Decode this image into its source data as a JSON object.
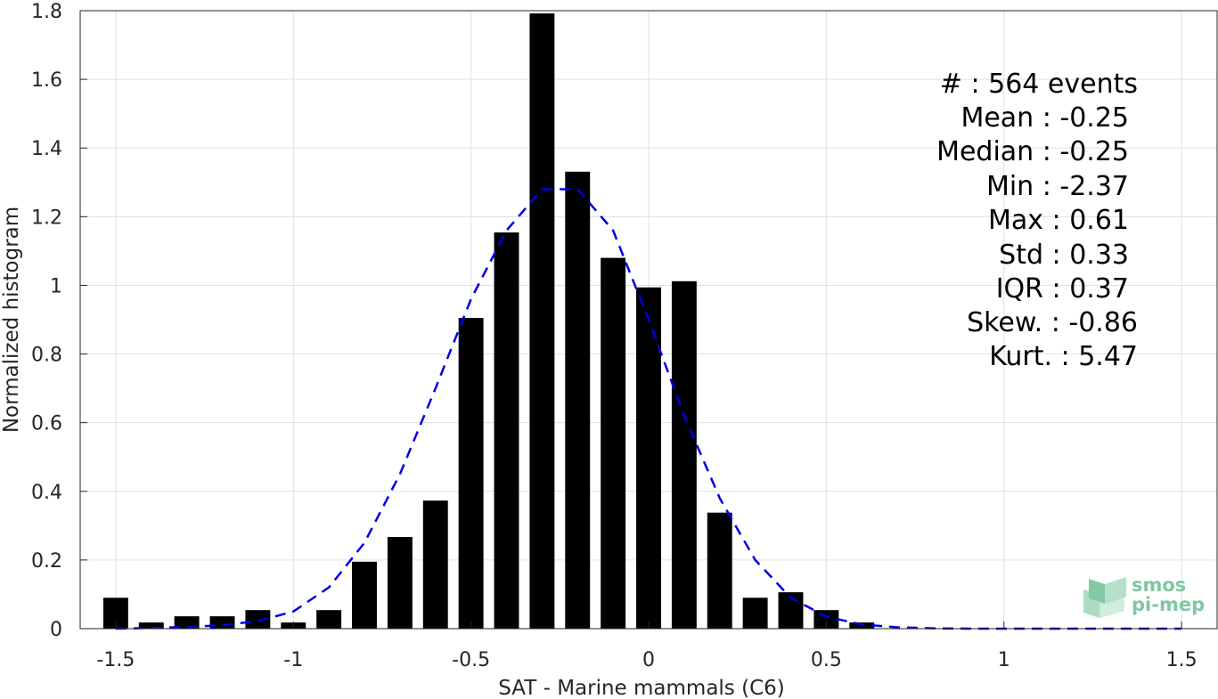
{
  "chart_data": {
    "type": "bar",
    "xlabel": "SAT - Marine mammals (C6)",
    "ylabel": "Normalized histogram",
    "xlim": [
      -1.6,
      1.6
    ],
    "ylim": [
      0,
      1.8
    ],
    "x_ticks": [
      -1.5,
      -1,
      -0.5,
      0,
      0.5,
      1,
      1.5
    ],
    "x_tick_labels": [
      "-1.5",
      "-1",
      "-0.5",
      "0",
      "0.5",
      "1",
      "1.5"
    ],
    "y_ticks": [
      0,
      0.2,
      0.4,
      0.6,
      0.8,
      1,
      1.2,
      1.4,
      1.6,
      1.8
    ],
    "y_tick_labels": [
      "0",
      "0.2",
      "0.4",
      "0.6",
      "0.8",
      "1",
      "1.2",
      "1.4",
      "1.6",
      "1.8"
    ],
    "grid": true,
    "bar_width": 0.07,
    "bars": [
      {
        "x": -1.5,
        "value": 0.09
      },
      {
        "x": -1.4,
        "value": 0.018
      },
      {
        "x": -1.3,
        "value": 0.036
      },
      {
        "x": -1.2,
        "value": 0.036
      },
      {
        "x": -1.1,
        "value": 0.054
      },
      {
        "x": -1.0,
        "value": 0.018
      },
      {
        "x": -0.9,
        "value": 0.054
      },
      {
        "x": -0.8,
        "value": 0.195
      },
      {
        "x": -0.7,
        "value": 0.267
      },
      {
        "x": -0.6,
        "value": 0.373
      },
      {
        "x": -0.5,
        "value": 0.905
      },
      {
        "x": -0.4,
        "value": 1.154
      },
      {
        "x": -0.3,
        "value": 1.792
      },
      {
        "x": -0.2,
        "value": 1.331
      },
      {
        "x": -0.1,
        "value": 1.08
      },
      {
        "x": 0.0,
        "value": 0.994
      },
      {
        "x": 0.1,
        "value": 1.012
      },
      {
        "x": 0.2,
        "value": 0.338
      },
      {
        "x": 0.3,
        "value": 0.09
      },
      {
        "x": 0.4,
        "value": 0.106
      },
      {
        "x": 0.5,
        "value": 0.054
      },
      {
        "x": 0.6,
        "value": 0.018
      }
    ],
    "bar_color": "#000000",
    "fit_curve": {
      "style": "dashed",
      "color": "#0000e6",
      "x": [
        -1.5,
        -1.4,
        -1.3,
        -1.2,
        -1.1,
        -1.0,
        -0.9,
        -0.8,
        -0.7,
        -0.6,
        -0.5,
        -0.4,
        -0.3,
        -0.2,
        -0.1,
        0.0,
        0.1,
        0.2,
        0.3,
        0.4,
        0.5,
        0.6,
        0.7,
        0.8,
        0.9,
        1.0,
        1.1,
        1.2,
        1.3,
        1.4,
        1.5
      ],
      "y": [
        0.0,
        0.002,
        0.005,
        0.01,
        0.022,
        0.05,
        0.12,
        0.25,
        0.45,
        0.7,
        0.96,
        1.16,
        1.28,
        1.28,
        1.16,
        0.9,
        0.62,
        0.38,
        0.2,
        0.09,
        0.035,
        0.012,
        0.004,
        0.001,
        0.0,
        0.0,
        0.0,
        0.0,
        0.0,
        0.0,
        0.0
      ]
    },
    "stats": [
      "#  : 564 events",
      "Mean : -0.25",
      "Median : -0.25",
      "Min : -2.37",
      "Max : 0.61",
      "Std : 0.33",
      "IQR : 0.37",
      "Skew. : -0.86",
      "Kurt. : 5.47"
    ]
  },
  "logo": {
    "line1": "smos",
    "line2": "pi-mep",
    "color": "#7fc7a2"
  }
}
